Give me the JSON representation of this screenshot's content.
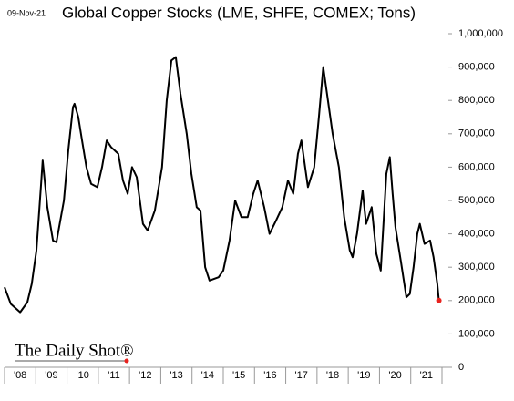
{
  "chart_data": {
    "type": "line",
    "title": "Global Copper Stocks (LME, SHFE, COMEX; Tons)",
    "date_label": "09-Nov-21",
    "logo": "The Daily Shot®",
    "x": [
      2008.0,
      2008.2,
      2008.5,
      2008.73,
      2008.87,
      2009.02,
      2009.17,
      2009.22,
      2009.37,
      2009.55,
      2009.66,
      2009.9,
      2010.04,
      2010.19,
      2010.24,
      2010.36,
      2010.48,
      2010.62,
      2010.77,
      2010.97,
      2011.12,
      2011.27,
      2011.41,
      2011.64,
      2011.79,
      2011.94,
      2012.08,
      2012.23,
      2012.43,
      2012.58,
      2012.81,
      2013.04,
      2013.19,
      2013.34,
      2013.48,
      2013.63,
      2013.83,
      2013.98,
      2014.15,
      2014.27,
      2014.42,
      2014.56,
      2014.85,
      2015.0,
      2015.2,
      2015.38,
      2015.58,
      2015.78,
      2015.96,
      2016.1,
      2016.31,
      2016.48,
      2016.69,
      2016.89,
      2017.07,
      2017.24,
      2017.39,
      2017.5,
      2017.71,
      2017.91,
      2018.06,
      2018.2,
      2018.35,
      2018.5,
      2018.7,
      2018.87,
      2019.05,
      2019.14,
      2019.28,
      2019.46,
      2019.57,
      2019.75,
      2019.9,
      2020.04,
      2020.22,
      2020.33,
      2020.42,
      2020.51,
      2020.68,
      2020.86,
      2020.97,
      2021.09,
      2021.21,
      2021.29,
      2021.44,
      2021.62,
      2021.73,
      2021.85,
      2021.9
    ],
    "series": [
      {
        "name": "Global Copper Stocks",
        "color": "#000000",
        "values": [
          240000,
          190000,
          165000,
          195000,
          250000,
          350000,
          550000,
          620000,
          480000,
          380000,
          375000,
          500000,
          650000,
          780000,
          790000,
          750000,
          680000,
          600000,
          550000,
          540000,
          600000,
          680000,
          660000,
          640000,
          560000,
          520000,
          600000,
          570000,
          430000,
          410000,
          470000,
          600000,
          800000,
          920000,
          930000,
          820000,
          700000,
          580000,
          480000,
          470000,
          300000,
          260000,
          270000,
          290000,
          380000,
          500000,
          450000,
          450000,
          520000,
          560000,
          480000,
          400000,
          440000,
          480000,
          560000,
          520000,
          640000,
          680000,
          540000,
          600000,
          750000,
          900000,
          800000,
          700000,
          600000,
          450000,
          350000,
          330000,
          400000,
          530000,
          430000,
          480000,
          340000,
          290000,
          580000,
          630000,
          520000,
          420000,
          320000,
          210000,
          220000,
          300000,
          400000,
          430000,
          370000,
          380000,
          330000,
          250000,
          200000
        ]
      }
    ],
    "last_point_color": "#e8231f",
    "xlim": [
      2008,
      2022
    ],
    "xticks": [
      {
        "value": 2008.5,
        "label": "'08"
      },
      {
        "value": 2009.5,
        "label": "'09"
      },
      {
        "value": 2010.5,
        "label": "'10"
      },
      {
        "value": 2011.5,
        "label": "'11"
      },
      {
        "value": 2012.5,
        "label": "'12"
      },
      {
        "value": 2013.5,
        "label": "'13"
      },
      {
        "value": 2014.5,
        "label": "'14"
      },
      {
        "value": 2015.5,
        "label": "'15"
      },
      {
        "value": 2016.5,
        "label": "'16"
      },
      {
        "value": 2017.5,
        "label": "'17"
      },
      {
        "value": 2018.5,
        "label": "'18"
      },
      {
        "value": 2019.5,
        "label": "'19"
      },
      {
        "value": 2020.5,
        "label": "'20"
      },
      {
        "value": 2021.5,
        "label": "'21"
      }
    ],
    "ylim": [
      0,
      1000000
    ],
    "yticks": [
      0,
      {
        "value": 100000,
        "label": "100,000"
      },
      {
        "value": 200000,
        "label": "200,000"
      },
      {
        "value": 300000,
        "label": "300,000"
      },
      {
        "value": 400000,
        "label": "400,000"
      },
      {
        "value": 500000,
        "label": "500,000"
      },
      {
        "value": 600000,
        "label": "600,000"
      },
      {
        "value": 700000,
        "label": "700,000"
      },
      {
        "value": 800000,
        "label": "800,000"
      },
      {
        "value": 900000,
        "label": "900,000"
      },
      {
        "value": 1000000,
        "label": "1,000,000"
      }
    ],
    "grid": false
  }
}
